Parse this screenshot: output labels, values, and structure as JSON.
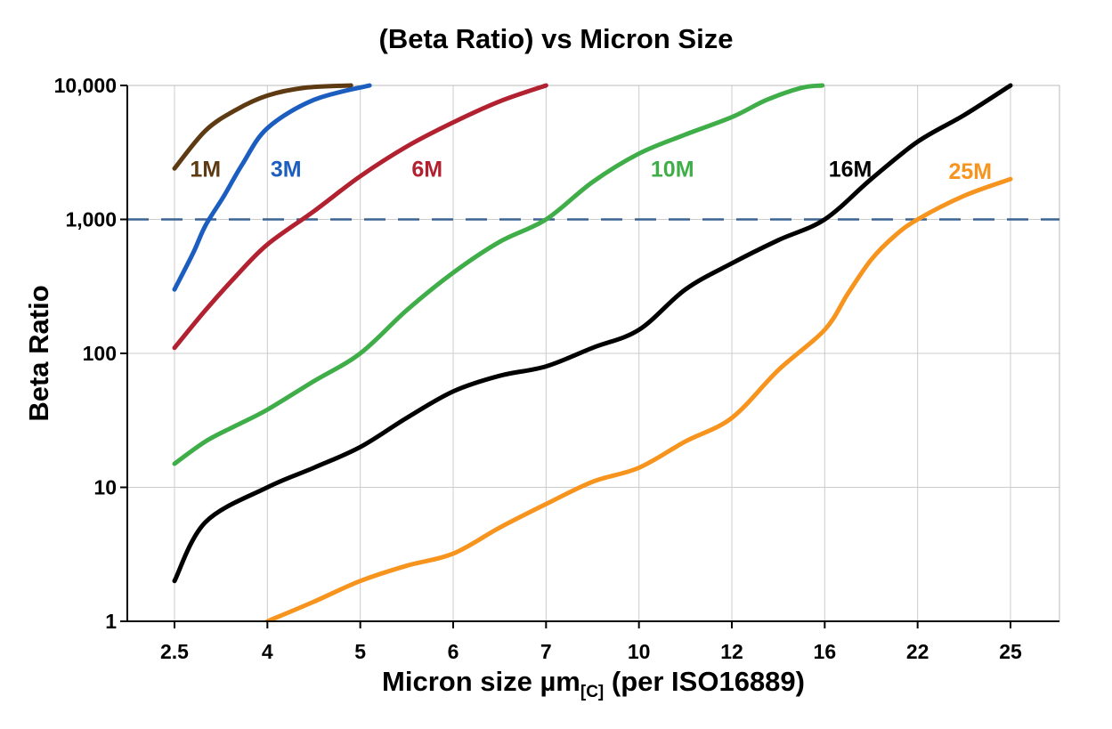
{
  "chart_data": {
    "type": "line",
    "title": "(Beta Ratio) vs Micron Size",
    "ylabel": "Beta Ratio",
    "xlabel_prefix": "Micron size µm",
    "xlabel_sub": "[C]",
    "xlabel_suffix": " (per ISO16889)",
    "x_scale": "categorical",
    "y_scale": "log",
    "ylim": [
      1,
      10000
    ],
    "x_ticks": [
      2.5,
      4,
      5,
      6,
      7,
      10,
      12,
      16,
      22,
      25
    ],
    "x_tick_labels": [
      "2.5",
      "4",
      "5",
      "6",
      "7",
      "10",
      "12",
      "16",
      "22",
      "25"
    ],
    "y_ticks": [
      1,
      10,
      100,
      1000,
      10000
    ],
    "y_tick_labels": [
      "1",
      "10",
      "100",
      "1,000",
      "10,000"
    ],
    "grid": true,
    "legend_position": "inline-labels",
    "reference_line": {
      "y": 1000,
      "style": "dashed",
      "color": "#3b6391"
    },
    "colors": {
      "grid": "#cccccc",
      "frame": "#bbbbbb",
      "axis": "#000000"
    },
    "series": [
      {
        "name": "1M",
        "color": "#5e3a12",
        "label": {
          "x": 3.0,
          "y": 2400
        },
        "points": [
          [
            2.5,
            2400
          ],
          [
            3,
            4600
          ],
          [
            3.5,
            6600
          ],
          [
            4,
            8400
          ],
          [
            4.4,
            9600
          ],
          [
            4.9,
            10000
          ]
        ]
      },
      {
        "name": "3M",
        "color": "#1b5ec0",
        "label": {
          "x": 4.2,
          "y": 2400
        },
        "points": [
          [
            2.5,
            300
          ],
          [
            2.8,
            560
          ],
          [
            3,
            900
          ],
          [
            3.3,
            1500
          ],
          [
            3.6,
            2600
          ],
          [
            4,
            4800
          ],
          [
            4.5,
            7800
          ],
          [
            5.1,
            10000
          ]
        ]
      },
      {
        "name": "6M",
        "color": "#b22130",
        "label": {
          "x": 5.72,
          "y": 2400
        },
        "points": [
          [
            2.5,
            110
          ],
          [
            3,
            210
          ],
          [
            3.5,
            380
          ],
          [
            4,
            650
          ],
          [
            4.5,
            1150
          ],
          [
            5,
            2100
          ],
          [
            5.5,
            3500
          ],
          [
            6,
            5300
          ],
          [
            6.5,
            7600
          ],
          [
            7,
            10000
          ]
        ]
      },
      {
        "name": "10M",
        "color": "#3fae49",
        "label": {
          "x": 10.72,
          "y": 2400
        },
        "points": [
          [
            2.5,
            15
          ],
          [
            3,
            22
          ],
          [
            3.5,
            29
          ],
          [
            4,
            38
          ],
          [
            4.5,
            62
          ],
          [
            5,
            100
          ],
          [
            5.5,
            210
          ],
          [
            6,
            400
          ],
          [
            6.5,
            680
          ],
          [
            7,
            1000
          ],
          [
            8.5,
            1900
          ],
          [
            10,
            3100
          ],
          [
            11,
            4300
          ],
          [
            12,
            5800
          ],
          [
            13.5,
            7800
          ],
          [
            15,
            9600
          ],
          [
            15.9,
            10000
          ]
        ]
      },
      {
        "name": "16M",
        "color": "#000000",
        "label": {
          "x": 17.65,
          "y": 2400
        },
        "points": [
          [
            2.5,
            2
          ],
          [
            3,
            5.5
          ],
          [
            4,
            10
          ],
          [
            4.5,
            14
          ],
          [
            5,
            20
          ],
          [
            5.5,
            33
          ],
          [
            6,
            52
          ],
          [
            6.5,
            68
          ],
          [
            7,
            80
          ],
          [
            8.5,
            110
          ],
          [
            10,
            150
          ],
          [
            11,
            300
          ],
          [
            12,
            470
          ],
          [
            14,
            700
          ],
          [
            16,
            1000
          ],
          [
            19,
            2000
          ],
          [
            22,
            3800
          ],
          [
            23.5,
            6000
          ],
          [
            25,
            10000
          ]
        ]
      },
      {
        "name": "25M",
        "color": "#f7941e",
        "label": {
          "x": 23.7,
          "y": 2300
        },
        "points": [
          [
            4,
            1
          ],
          [
            4.5,
            1.4
          ],
          [
            5,
            2
          ],
          [
            5.5,
            2.6
          ],
          [
            6,
            3.2
          ],
          [
            6.5,
            5
          ],
          [
            7,
            7.5
          ],
          [
            8.5,
            11
          ],
          [
            10,
            14
          ],
          [
            11,
            22
          ],
          [
            12,
            33
          ],
          [
            14,
            75
          ],
          [
            16,
            150
          ],
          [
            17.5,
            280
          ],
          [
            19,
            500
          ],
          [
            20.5,
            750
          ],
          [
            22,
            1000
          ],
          [
            23.5,
            1500
          ],
          [
            25,
            2000
          ]
        ]
      }
    ]
  }
}
